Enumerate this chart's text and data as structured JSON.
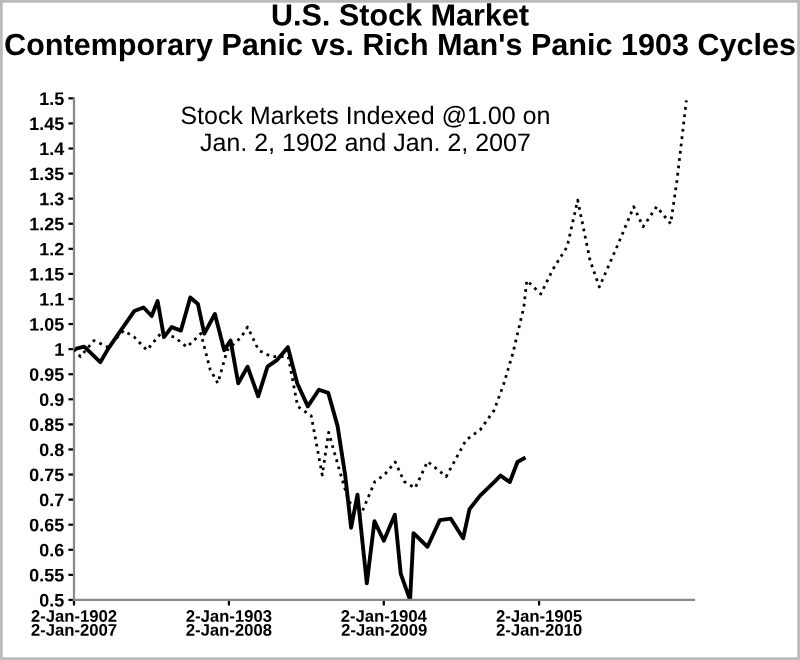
{
  "chart_data": {
    "type": "line",
    "title": "U.S. Stock Market\nContemporary Panic vs. Rich Man's Panic 1903 Cycles",
    "annotations": [
      "Stock Markets Indexed @1.00 on\nJan. 2, 1902 and Jan. 2, 2007"
    ],
    "series": [
      {
        "color": "#000000",
        "line_style": "solid",
        "x": [
          "1902-01-02",
          "1902-01-26",
          "1902-03-05",
          "1902-03-23",
          "1902-04-22",
          "1902-05-24",
          "1902-06-15",
          "1902-07-04",
          "1902-07-18",
          "1902-08-02",
          "1902-08-20",
          "1902-09-11",
          "1902-10-03",
          "1902-10-21",
          "1902-11-05",
          "1902-11-30",
          "1902-12-22",
          "1903-01-06",
          "1903-01-24",
          "1903-02-15",
          "1903-03-12",
          "1903-04-03",
          "1903-04-25",
          "1903-05-21",
          "1903-06-12",
          "1903-07-07",
          "1903-08-02",
          "1903-08-24",
          "1903-09-15",
          "1903-10-03",
          "1903-10-17",
          "1903-11-01",
          "1903-11-23",
          "1903-12-11",
          "1904-01-02",
          "1904-01-28",
          "1904-02-11",
          "1904-03-04",
          "1904-03-12",
          "1904-04-14",
          "1904-05-13",
          "1904-06-08",
          "1904-07-07",
          "1904-07-22",
          "1904-08-16",
          "1904-09-18",
          "1904-10-03",
          "1904-10-25",
          "1904-11-12",
          "1904-11-27"
        ],
        "values": [
          1.0,
          1.005,
          0.974,
          1.0,
          1.037,
          1.076,
          1.083,
          1.066,
          1.096,
          1.024,
          1.044,
          1.037,
          1.103,
          1.09,
          1.031,
          1.07,
          0.998,
          1.017,
          0.932,
          0.965,
          0.906,
          0.965,
          0.978,
          1.004,
          0.932,
          0.886,
          0.919,
          0.913,
          0.847,
          0.749,
          0.644,
          0.71,
          0.533,
          0.657,
          0.618,
          0.67,
          0.552,
          0.5,
          0.633,
          0.606,
          0.659,
          0.662,
          0.623,
          0.681,
          0.708,
          0.735,
          0.748,
          0.735,
          0.775,
          0.782
        ]
      },
      {
        "color": "#000000",
        "line_style": "dotted",
        "axis": "x2",
        "x": [
          "2007-01-02",
          "2007-01-17",
          "2007-02-18",
          "2007-03-23",
          "2007-04-29",
          "2007-05-24",
          "2007-06-23",
          "2007-07-25",
          "2007-08-27",
          "2007-09-25",
          "2007-10-28",
          "2007-11-19",
          "2007-12-07",
          "2007-12-29",
          "2008-01-31",
          "2008-02-15",
          "2008-03-12",
          "2008-04-11",
          "2008-05-21",
          "2008-06-12",
          "2008-07-14",
          "2008-08-09",
          "2008-08-24",
          "2008-09-15",
          "2008-10-10",
          "2008-11-08",
          "2008-12-11",
          "2009-01-02",
          "2009-01-28",
          "2009-02-18",
          "2009-03-16",
          "2009-04-14",
          "2009-05-28",
          "2009-07-14",
          "2009-08-16",
          "2009-09-18",
          "2009-10-10",
          "2009-11-01",
          "2009-11-27",
          "2009-12-04",
          "2010-01-06",
          "2010-02-04",
          "2010-03-09",
          "2010-04-03",
          "2010-05-02",
          "2010-05-24",
          "2010-07-11",
          "2010-08-13",
          "2010-09-04",
          "2010-10-06",
          "2010-11-08",
          "2010-11-23",
          "2010-12-15"
        ],
        "values": [
          1.0,
          0.985,
          1.017,
          1.004,
          1.037,
          1.024,
          0.998,
          1.031,
          1.024,
          1.004,
          1.031,
          0.959,
          0.932,
          0.998,
          1.024,
          1.044,
          0.998,
          0.985,
          0.985,
          0.886,
          0.867,
          0.749,
          0.834,
          0.769,
          0.697,
          0.67,
          0.736,
          0.749,
          0.775,
          0.736,
          0.723,
          0.776,
          0.746,
          0.819,
          0.839,
          0.878,
          0.929,
          0.991,
          1.084,
          1.137,
          1.11,
          1.16,
          1.204,
          1.297,
          1.177,
          1.124,
          1.217,
          1.284,
          1.244,
          1.284,
          1.25,
          1.337,
          1.496
        ]
      }
    ],
    "xlim": [
      "1902-01-02",
      "1906-01-02"
    ],
    "xticks": [
      {
        "value": "1902-01-02",
        "label": "2-Jan-1902"
      },
      {
        "value": "1903-01-02",
        "label": "2-Jan-1903"
      },
      {
        "value": "1904-01-02",
        "label": "2-Jan-1904"
      },
      {
        "value": "1905-01-02",
        "label": "2-Jan-1905"
      }
    ],
    "x2lim": [
      "2007-01-02",
      "2011-01-02"
    ],
    "x2ticks": [
      {
        "value": "2007-01-02",
        "label": "2-Jan-2007"
      },
      {
        "value": "2008-01-02",
        "label": "2-Jan-2008"
      },
      {
        "value": "2009-01-02",
        "label": "2-Jan-2009"
      },
      {
        "value": "2010-01-02",
        "label": "2-Jan-2010"
      }
    ],
    "ylim": [
      0.5,
      1.5
    ],
    "yticks": [
      0.5,
      0.55,
      0.6,
      0.65,
      0.7,
      0.75,
      0.8,
      0.85,
      0.9,
      0.95,
      1,
      1.05,
      1.1,
      1.15,
      1.2,
      1.25,
      1.3,
      1.35,
      1.4,
      1.45,
      1.5
    ],
    "grid": false,
    "legend": false
  }
}
